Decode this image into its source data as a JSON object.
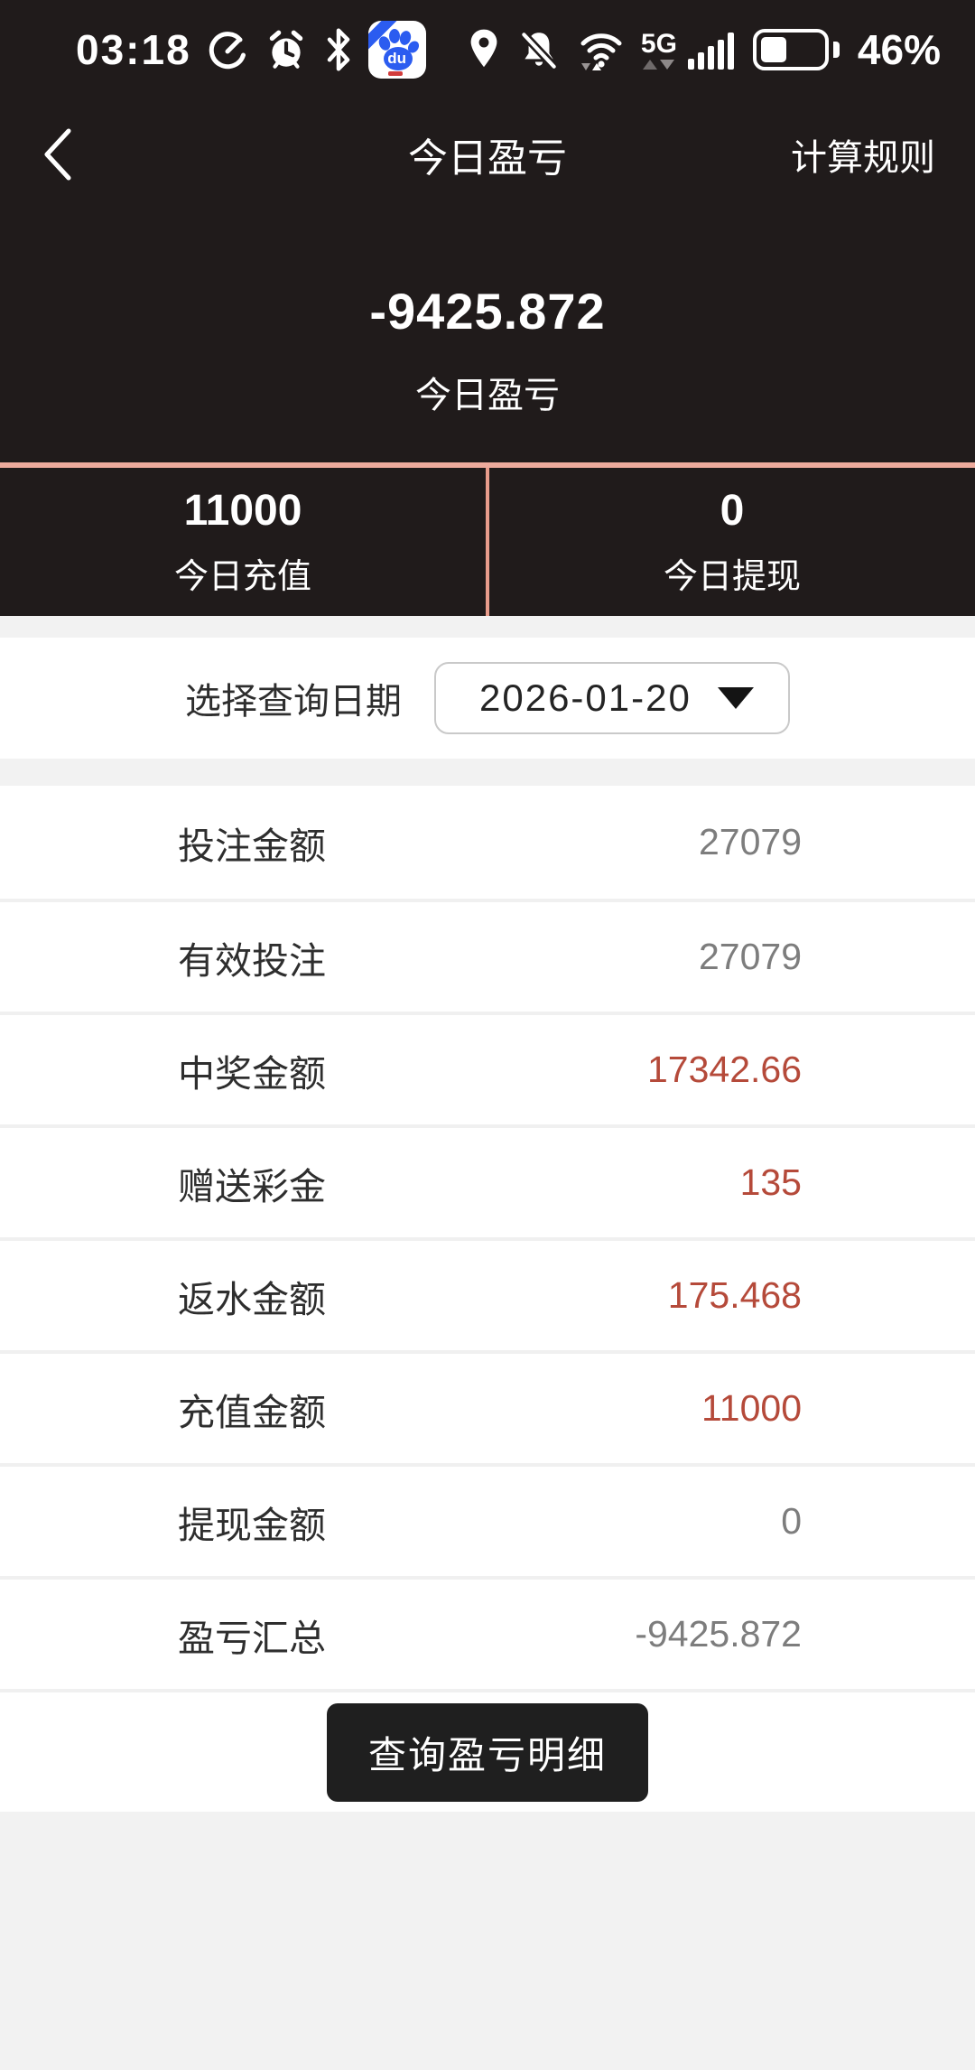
{
  "status_bar": {
    "time": "03:18",
    "network_label": "5G",
    "battery_percent": "46%",
    "battery_level": 0.46,
    "left_icons": [
      "speedometer-icon",
      "alarm-clock-icon",
      "bluetooth-icon",
      "baidu-app-icon"
    ],
    "right_icons": [
      "location-pin-icon",
      "mute-bell-icon",
      "wifi-icon",
      "network-5g-indicator",
      "signal-bars-icon",
      "battery-icon"
    ],
    "baidu_badge_text": "du"
  },
  "nav": {
    "back_icon": "back-chevron-icon",
    "title": "今日盈亏",
    "rules_link": "计算规则"
  },
  "hero": {
    "amount": "-9425.872",
    "label": "今日盈亏"
  },
  "today_summary": {
    "recharge": {
      "value": "11000",
      "label": "今日充值"
    },
    "withdraw": {
      "value": "0",
      "label": "今日提现"
    }
  },
  "date_picker": {
    "label": "选择查询日期",
    "value": "2026-01-20",
    "caret_icon": "chevron-down-icon"
  },
  "detail_rows": [
    {
      "label": "投注金额",
      "value": "27079",
      "tone": "gray"
    },
    {
      "label": "有效投注",
      "value": "27079",
      "tone": "gray"
    },
    {
      "label": "中奖金额",
      "value": "17342.66",
      "tone": "red"
    },
    {
      "label": "赠送彩金",
      "value": "135",
      "tone": "red"
    },
    {
      "label": "返水金额",
      "value": "175.468",
      "tone": "red"
    },
    {
      "label": "充值金额",
      "value": "11000",
      "tone": "red"
    },
    {
      "label": "提现金额",
      "value": "0",
      "tone": "gray"
    },
    {
      "label": "盈亏汇总",
      "value": "-9425.872",
      "tone": "gray"
    }
  ],
  "actions": {
    "query_detail": "查询盈亏明细"
  },
  "colors": {
    "dark_bg": "#201b1b",
    "accent_salmon": "#edab9d",
    "value_red": "#b54a3a",
    "value_gray": "#7d7d7d",
    "strip_gray": "#f2f2f2"
  }
}
